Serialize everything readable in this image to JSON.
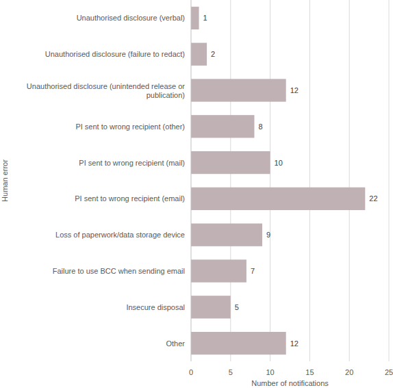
{
  "chart_data": {
    "type": "bar",
    "orientation": "horizontal",
    "x_label": "Number of notifications",
    "y_label": "Human error",
    "categories": [
      "Unauthorised disclosure (verbal)",
      "Unauthorised disclosure (failure to redact)",
      "Unauthorised disclosure (unintended release or publication)",
      "PI sent to wrong recipient (other)",
      "PI sent to wrong recipient (mail)",
      "PI sent to wrong recipient (email)",
      "Loss of paperwork/data storage device",
      "Failure to use BCC when sending email",
      "Insecure disposal",
      "Other"
    ],
    "values": [
      1,
      2,
      12,
      8,
      10,
      22,
      9,
      7,
      5,
      12
    ],
    "color": "#c0b1b4",
    "xlim": [
      0,
      25
    ],
    "xticks": [
      0,
      5,
      10,
      15,
      20,
      25
    ],
    "grid": true,
    "data_labels": true
  }
}
